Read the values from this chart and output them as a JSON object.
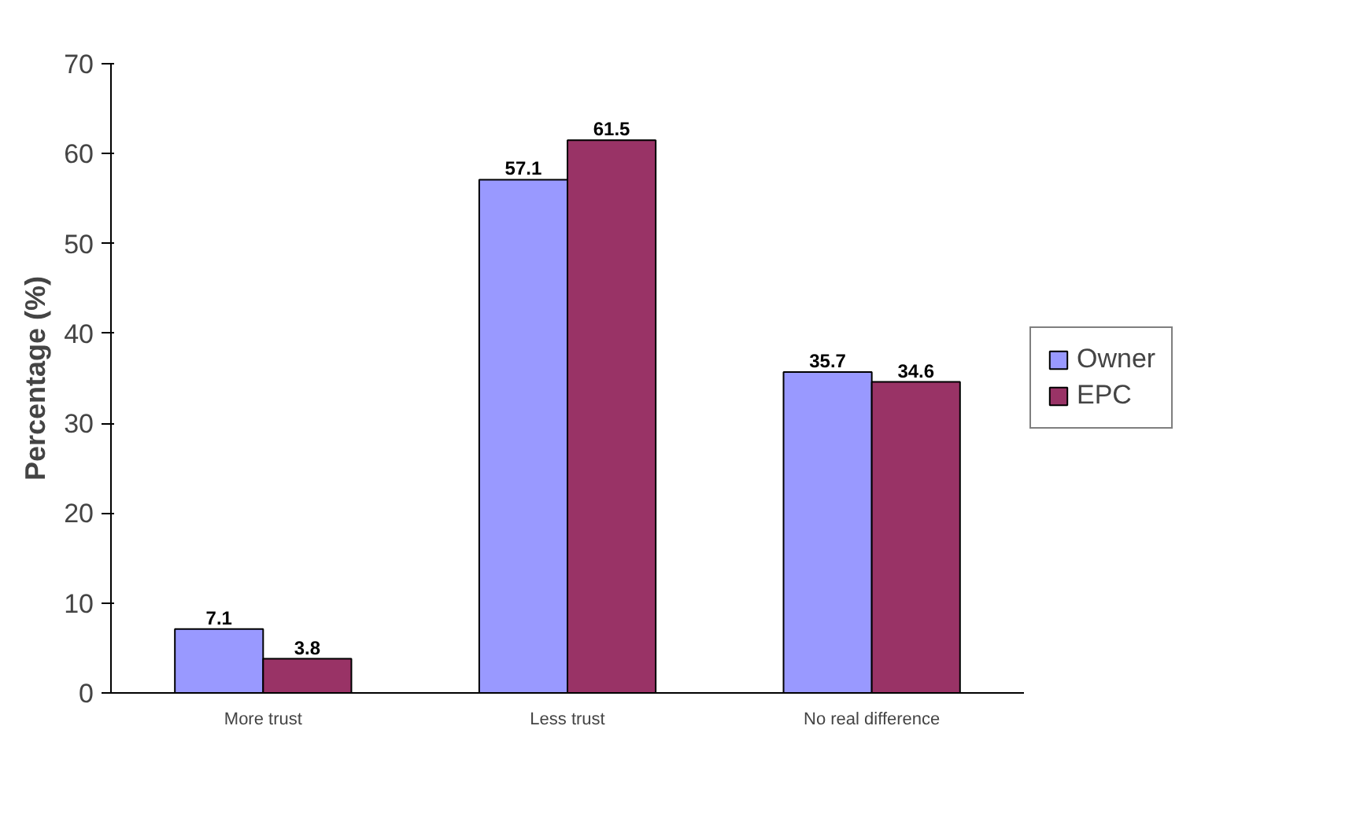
{
  "chart_data": {
    "type": "bar",
    "ylabel": "Percentage (%)",
    "categories": [
      "More trust",
      "Less trust",
      "No real difference"
    ],
    "series": [
      {
        "name": "Owner",
        "color": "#9999ff",
        "values": [
          7.1,
          57.1,
          35.7
        ]
      },
      {
        "name": "EPC",
        "color": "#993366",
        "values": [
          3.8,
          61.5,
          34.6
        ]
      }
    ],
    "ylim": [
      0,
      70
    ],
    "yticks": [
      0,
      10,
      20,
      30,
      40,
      50,
      60,
      70
    ],
    "data_labels": true,
    "grid": false,
    "legend": "right"
  }
}
